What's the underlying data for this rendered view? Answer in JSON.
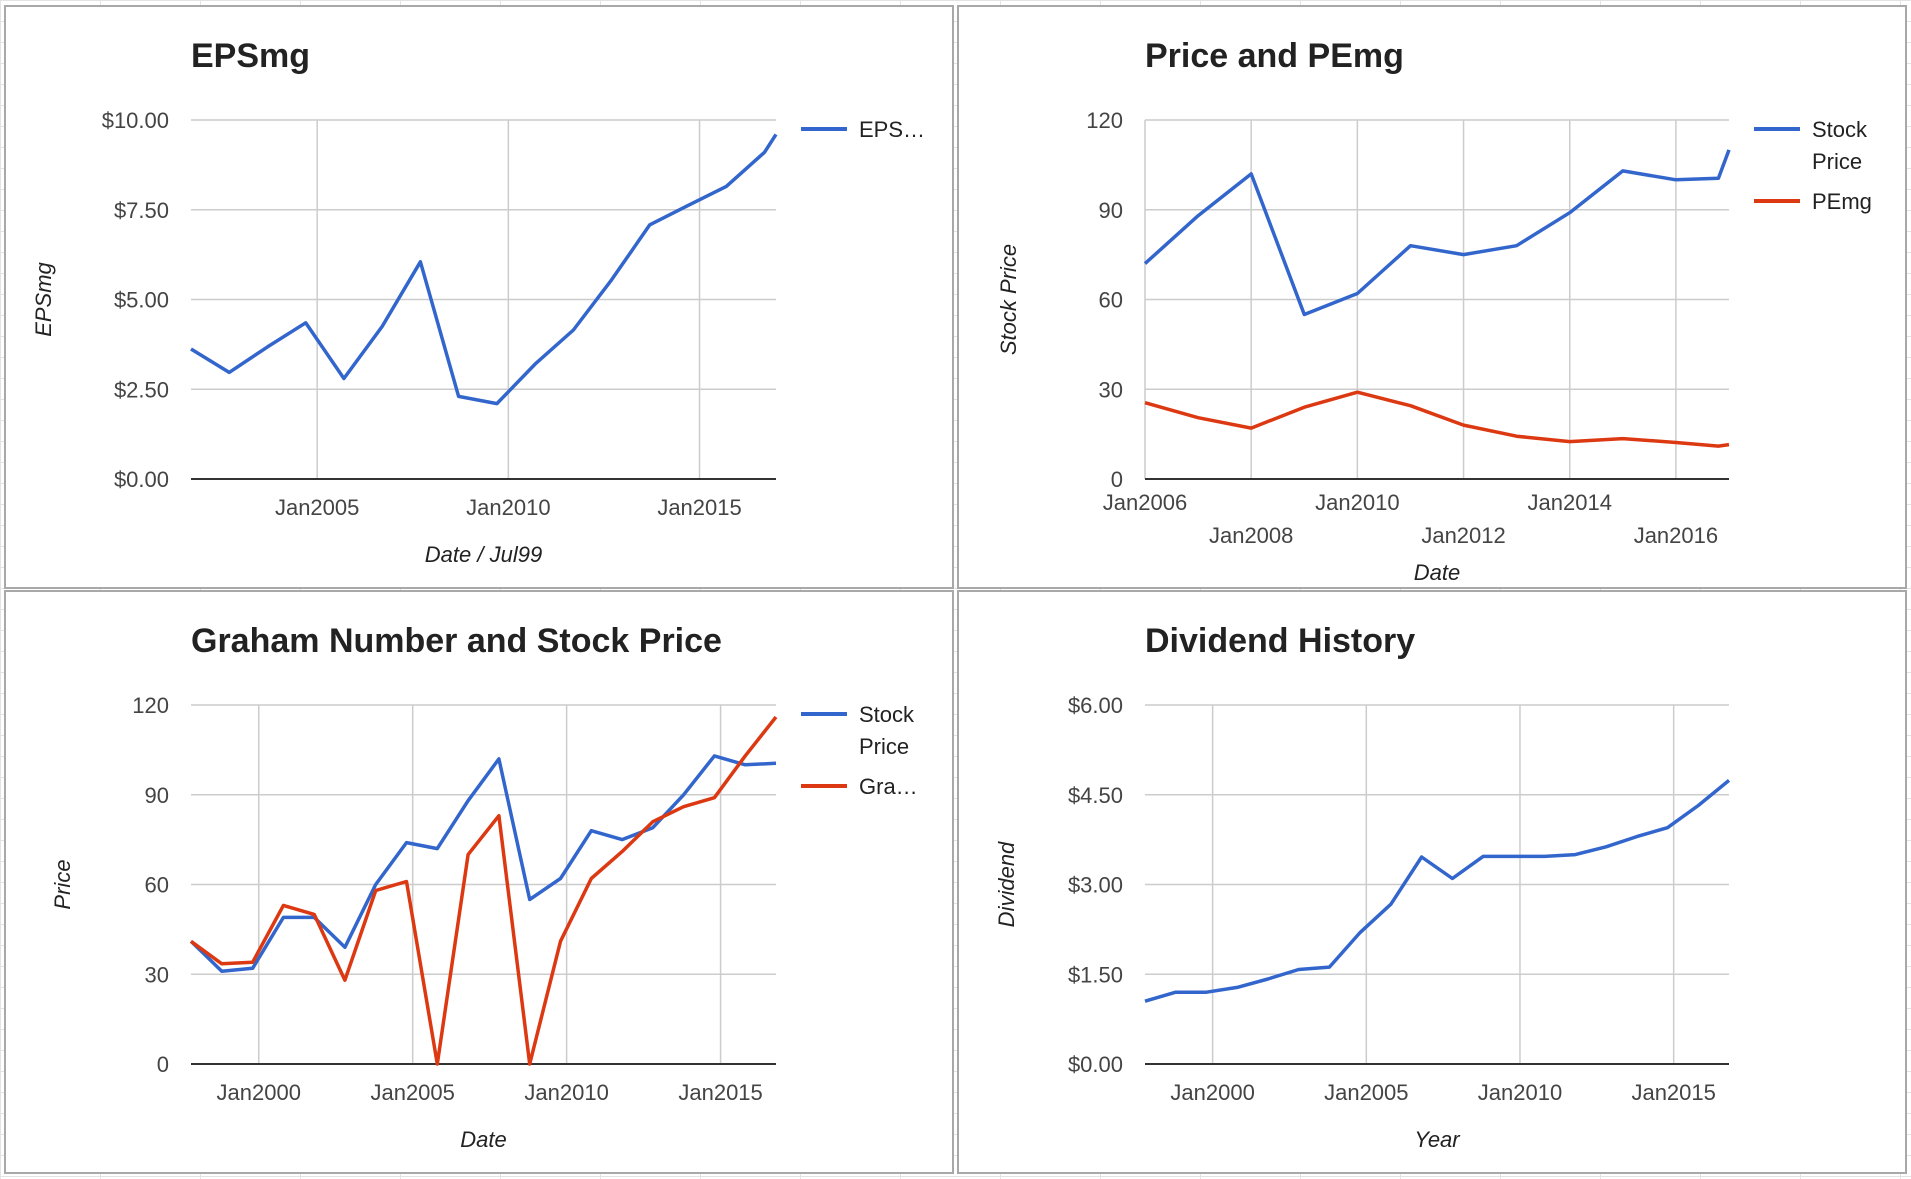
{
  "colors": {
    "blue": "#3366cc",
    "red": "#dc3912",
    "grid": "#cccccc",
    "axis": "#333333"
  },
  "chart_data": [
    {
      "id": "eps",
      "type": "line",
      "title": "EPSmg",
      "xlabel": "Date / Jul99",
      "ylabel": "EPSmg",
      "xlim": [
        2001.7,
        2017.0
      ],
      "ylim": [
        0,
        10
      ],
      "y_ticks": [
        0,
        2.5,
        5,
        7.5,
        10
      ],
      "y_tick_labels": [
        "$0.00",
        "$2.50",
        "$5.00",
        "$7.50",
        "$10.00"
      ],
      "x_ticks": [
        2005,
        2010,
        2015
      ],
      "x_tick_labels": [
        "Jan2005",
        "Jan2010",
        "Jan2015"
      ],
      "legend_position": "right",
      "series": [
        {
          "name": "EPS…",
          "color": "#3366cc",
          "x": [
            2001.7,
            2002.7,
            2003.7,
            2004.7,
            2005.7,
            2006.7,
            2007.7,
            2008.7,
            2009.7,
            2010.7,
            2011.7,
            2012.7,
            2013.7,
            2014.7,
            2015.7,
            2016.7,
            2017.0
          ],
          "y": [
            3.62,
            2.97,
            3.68,
            4.35,
            2.8,
            4.25,
            6.05,
            2.3,
            2.1,
            3.2,
            4.15,
            5.55,
            7.08,
            7.62,
            8.15,
            9.1,
            9.6
          ]
        }
      ]
    },
    {
      "id": "price-pe",
      "type": "line",
      "title": "Price and PEmg",
      "xlabel": "Date",
      "ylabel": "Stock Price",
      "xlim": [
        2006.0,
        2017.0
      ],
      "ylim": [
        0,
        120
      ],
      "y_ticks": [
        0,
        30,
        60,
        90,
        120
      ],
      "y_tick_labels": [
        "0",
        "30",
        "60",
        "90",
        "120"
      ],
      "x_ticks": [
        2006,
        2008,
        2010,
        2012,
        2014,
        2016
      ],
      "x_tick_labels": [
        "Jan2006",
        "Jan2008",
        "Jan2010",
        "Jan2012",
        "Jan2014",
        "Jan2016"
      ],
      "legend_position": "right",
      "series": [
        {
          "name": "Stock Price",
          "color": "#3366cc",
          "x": [
            2006.0,
            2007.0,
            2008.0,
            2009.0,
            2010.0,
            2011.0,
            2012.0,
            2013.0,
            2014.0,
            2015.0,
            2016.0,
            2016.8,
            2017.0
          ],
          "y": [
            72,
            88,
            102,
            55,
            62,
            78,
            75,
            78,
            89,
            103,
            100,
            100.5,
            110
          ]
        },
        {
          "name": "PEmg",
          "color": "#dc3912",
          "x": [
            2006.0,
            2007.0,
            2008.0,
            2009.0,
            2010.0,
            2011.0,
            2012.0,
            2013.0,
            2014.0,
            2015.0,
            2016.0,
            2016.8,
            2017.0
          ],
          "y": [
            25.5,
            20.5,
            17,
            24,
            29,
            24.5,
            18,
            14.3,
            12.5,
            13.5,
            12.2,
            11,
            11.5
          ]
        }
      ]
    },
    {
      "id": "graham",
      "type": "line",
      "title": "Graham Number and Stock Price",
      "xlabel": "Date",
      "ylabel": "Price",
      "xlim": [
        1997.8,
        2016.8
      ],
      "ylim": [
        0,
        120
      ],
      "y_ticks": [
        0,
        30,
        60,
        90,
        120
      ],
      "y_tick_labels": [
        "0",
        "30",
        "60",
        "90",
        "120"
      ],
      "x_ticks": [
        2000,
        2005,
        2010,
        2015
      ],
      "x_tick_labels": [
        "Jan2000",
        "Jan2005",
        "Jan2010",
        "Jan2015"
      ],
      "legend_position": "right",
      "series": [
        {
          "name": "Stock Price",
          "color": "#3366cc",
          "x": [
            1997.8,
            1998.8,
            1999.8,
            2000.8,
            2001.8,
            2002.8,
            2003.8,
            2004.8,
            2005.8,
            2006.8,
            2007.8,
            2008.8,
            2009.8,
            2010.8,
            2011.8,
            2012.8,
            2013.8,
            2014.8,
            2015.8,
            2016.8
          ],
          "y": [
            41,
            31,
            32,
            49,
            49,
            39,
            60,
            74,
            72,
            88,
            102,
            55,
            62,
            78,
            75,
            79,
            90,
            103,
            100,
            100.5
          ]
        },
        {
          "name": "Gra…",
          "color": "#dc3912",
          "x": [
            1997.8,
            1998.8,
            1999.8,
            2000.8,
            2001.8,
            2002.8,
            2003.8,
            2004.8,
            2005.8,
            2006.8,
            2007.8,
            2008.8,
            2009.8,
            2010.8,
            2011.8,
            2012.8,
            2013.8,
            2014.8,
            2015.8,
            2016.8
          ],
          "y": [
            41,
            33.5,
            34,
            53,
            50,
            28,
            58,
            61,
            0,
            70,
            83,
            0,
            41,
            62,
            71,
            81,
            86,
            89,
            103,
            116
          ]
        }
      ]
    },
    {
      "id": "dividend",
      "type": "line",
      "title": "Dividend History",
      "xlabel": "Year",
      "ylabel": "Dividend",
      "xlim": [
        1997.8,
        2016.8
      ],
      "ylim": [
        0,
        6
      ],
      "y_ticks": [
        0,
        1.5,
        3,
        4.5,
        6
      ],
      "y_tick_labels": [
        "$0.00",
        "$1.50",
        "$3.00",
        "$4.50",
        "$6.00"
      ],
      "x_ticks": [
        2000,
        2005,
        2010,
        2015
      ],
      "x_tick_labels": [
        "Jan2000",
        "Jan2005",
        "Jan2010",
        "Jan2015"
      ],
      "legend_position": "none",
      "series": [
        {
          "name": "",
          "color": "#3366cc",
          "x": [
            1997.8,
            1998.8,
            1999.8,
            2000.8,
            2001.8,
            2002.8,
            2003.8,
            2004.8,
            2005.8,
            2006.8,
            2007.8,
            2008.8,
            2009.8,
            2010.8,
            2011.8,
            2012.8,
            2013.8,
            2014.8,
            2015.8,
            2016.8
          ],
          "y": [
            1.05,
            1.2,
            1.2,
            1.28,
            1.42,
            1.58,
            1.62,
            2.2,
            2.67,
            3.46,
            3.1,
            3.47,
            3.47,
            3.47,
            3.5,
            3.63,
            3.8,
            3.95,
            4.32,
            4.74
          ]
        }
      ]
    }
  ]
}
